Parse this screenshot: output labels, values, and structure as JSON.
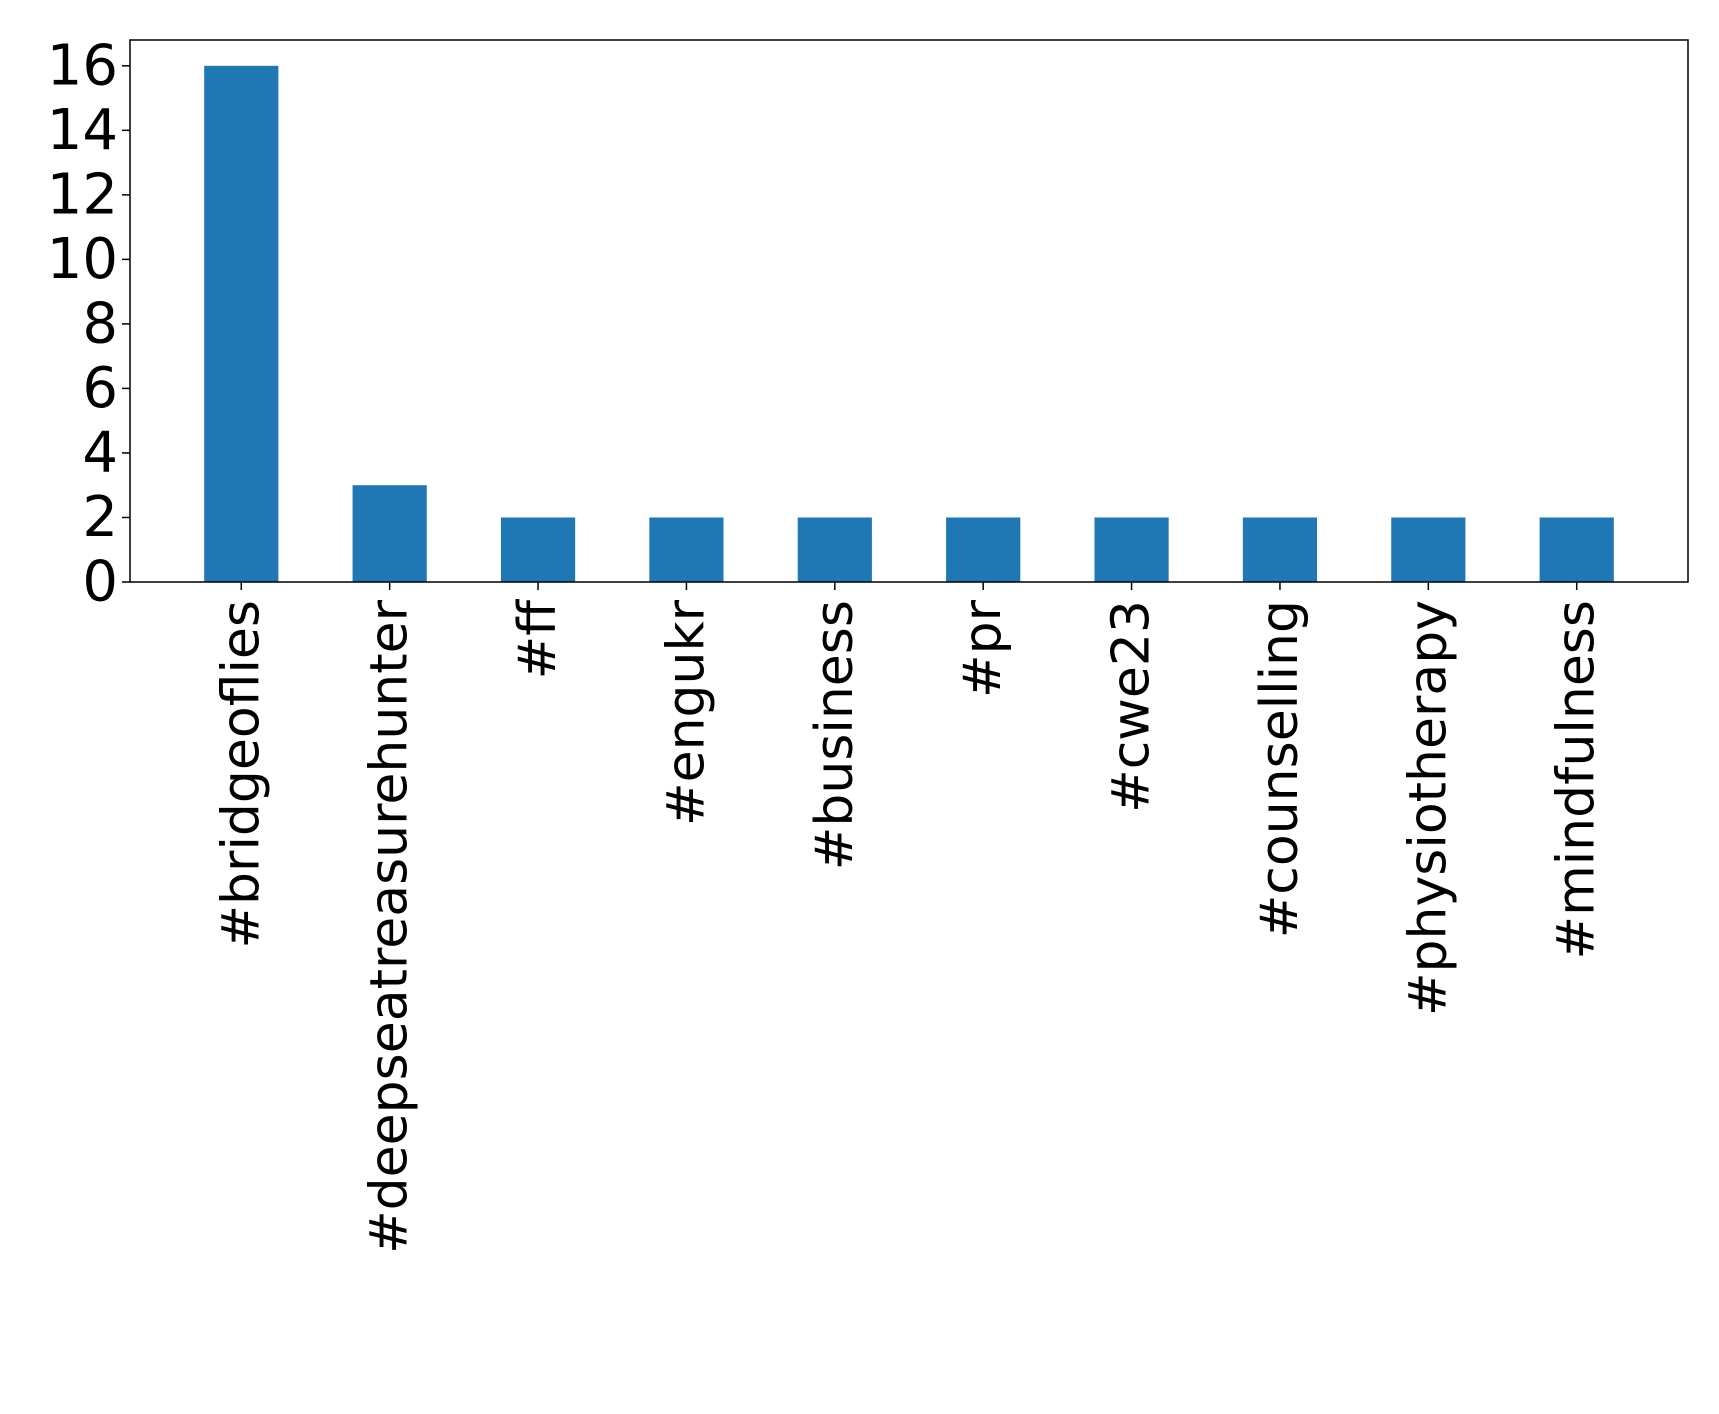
{
  "chart_data": {
    "type": "bar",
    "title": "",
    "xlabel": "",
    "ylabel": "",
    "categories": [
      "#bridgeoflies",
      "#deepseatreasurehunter",
      "#ff",
      "#engukr",
      "#business",
      "#pr",
      "#cwe23",
      "#counselling",
      "#physiotherapy",
      "#mindfulness"
    ],
    "values": [
      16,
      3,
      2,
      2,
      2,
      2,
      2,
      2,
      2,
      2
    ],
    "ylim": [
      0,
      16.8
    ],
    "yticks": [
      0,
      2,
      4,
      6,
      8,
      10,
      12,
      14,
      16
    ],
    "grid": false,
    "legend": "none",
    "bar_color": "#1f77b4"
  }
}
